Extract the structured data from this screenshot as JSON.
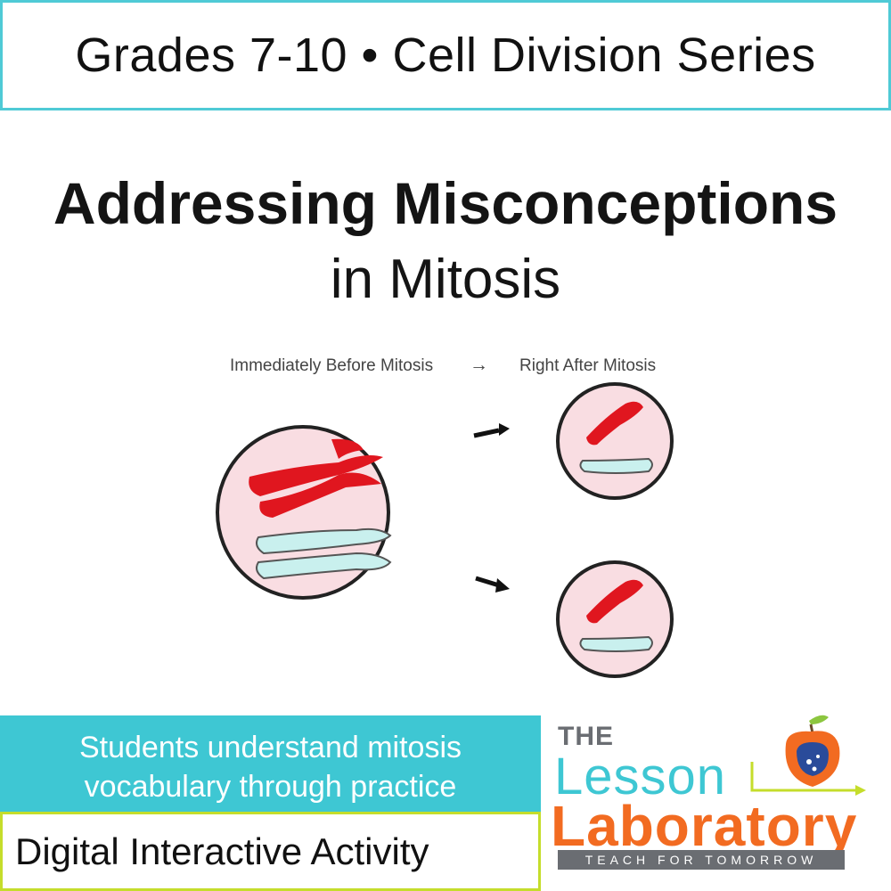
{
  "header": {
    "text": "Grades 7-10 • Cell Division Series"
  },
  "title": {
    "main": "Addressing Misconceptions",
    "sub": "in Mitosis"
  },
  "diagram": {
    "label_before": "Immediately Before Mitosis",
    "label_arrow": "→",
    "label_after": "Right After Mitosis",
    "colors": {
      "cell_fill": "#f9dde2",
      "cell_border": "#222222",
      "red_chromosome": "#e0161f",
      "blue_chromosome": "#c9f0ee"
    }
  },
  "callout": {
    "line1": "Students understand  mitosis",
    "line2": "vocabulary through practice"
  },
  "footer": {
    "activity": "Digital Interactive Activity"
  },
  "logo": {
    "the": "THE",
    "lesson": "Lesson",
    "laboratory": "Laboratory",
    "tagline": "TEACH FOR TOMORROW"
  },
  "colors": {
    "teal": "#3ec7d3",
    "lime": "#c5dd2b",
    "orange": "#f26b21",
    "gray": "#6a6d72"
  }
}
